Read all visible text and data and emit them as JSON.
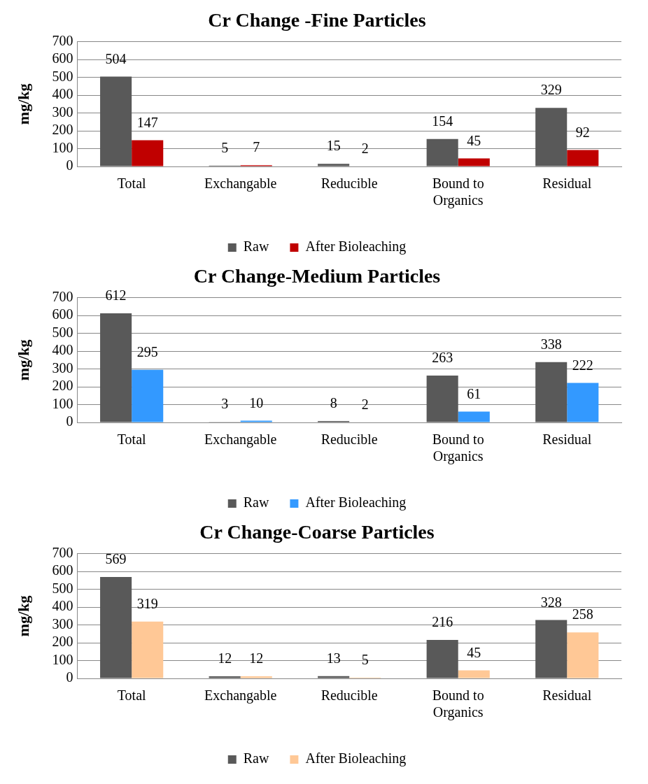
{
  "chart_data": [
    {
      "type": "bar",
      "title": "Cr Change -Fine Particles",
      "ylabel": "mg/kg",
      "categories": [
        "Total",
        "Exchangable",
        "Reducible",
        "Bound to Organics",
        "Residual"
      ],
      "series": [
        {
          "name": "Raw",
          "color": "#595959",
          "values": [
            504,
            5,
            15,
            154,
            329
          ]
        },
        {
          "name": "After Bioleaching",
          "color": "#c00000",
          "values": [
            147,
            7,
            2,
            45,
            92
          ]
        }
      ],
      "ylim": [
        0,
        700
      ],
      "yticks": [
        0,
        100,
        200,
        300,
        400,
        500,
        600,
        700
      ],
      "grid": "y",
      "legend": "bottom",
      "data_labels": true
    },
    {
      "type": "bar",
      "title": "Cr Change-Medium Particles",
      "ylabel": "mg/kg",
      "categories": [
        "Total",
        "Exchangable",
        "Reducible",
        "Bound to Organics",
        "Residual"
      ],
      "series": [
        {
          "name": "Raw",
          "color": "#595959",
          "values": [
            612,
            3,
            8,
            263,
            338
          ]
        },
        {
          "name": "After Bioleaching",
          "color": "#3399ff",
          "values": [
            295,
            10,
            2,
            61,
            222
          ]
        }
      ],
      "ylim": [
        0,
        700
      ],
      "yticks": [
        0,
        100,
        200,
        300,
        400,
        500,
        600,
        700
      ],
      "grid": "y",
      "legend": "bottom",
      "data_labels": true
    },
    {
      "type": "bar",
      "title": "Cr Change-Coarse Particles",
      "ylabel": "mg/kg",
      "categories": [
        "Total",
        "Exchangable",
        "Reducible",
        "Bound to Organics",
        "Residual"
      ],
      "series": [
        {
          "name": "Raw",
          "color": "#595959",
          "values": [
            569,
            12,
            13,
            216,
            328
          ]
        },
        {
          "name": "After Bioleaching",
          "color": "#ffc896",
          "values": [
            319,
            12,
            5,
            45,
            258
          ]
        }
      ],
      "ylim": [
        0,
        700
      ],
      "yticks": [
        0,
        100,
        200,
        300,
        400,
        500,
        600,
        700
      ],
      "grid": "y",
      "legend": "bottom",
      "data_labels": true
    }
  ]
}
